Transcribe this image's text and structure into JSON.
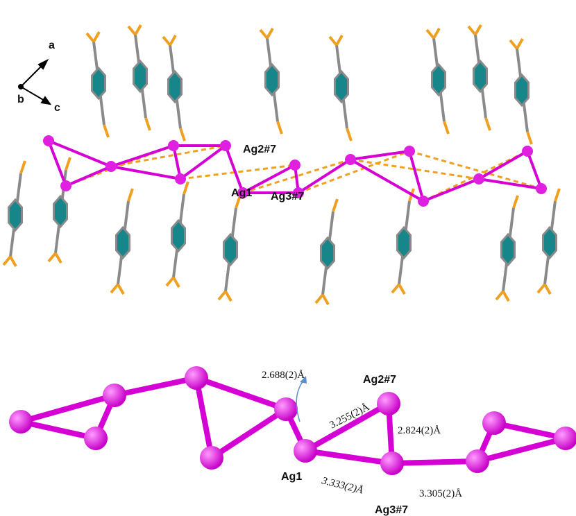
{
  "top": {
    "axes": {
      "a": "a",
      "b": "b",
      "c": "c"
    },
    "labels": {
      "ag2": "Ag2#7",
      "ag1": "Ag1",
      "ag3": "Ag3#7"
    }
  },
  "bottom": {
    "labels": {
      "ag2": "Ag2#7",
      "ag1": "Ag1",
      "ag3": "Ag3#7"
    },
    "distances": {
      "d1": "2.688(2)Å",
      "d2": "3.255(2)Å",
      "d3": "2.824(2)Å",
      "d4": "3.333(2)Å",
      "d5": "3.305(2)Å"
    }
  }
}
